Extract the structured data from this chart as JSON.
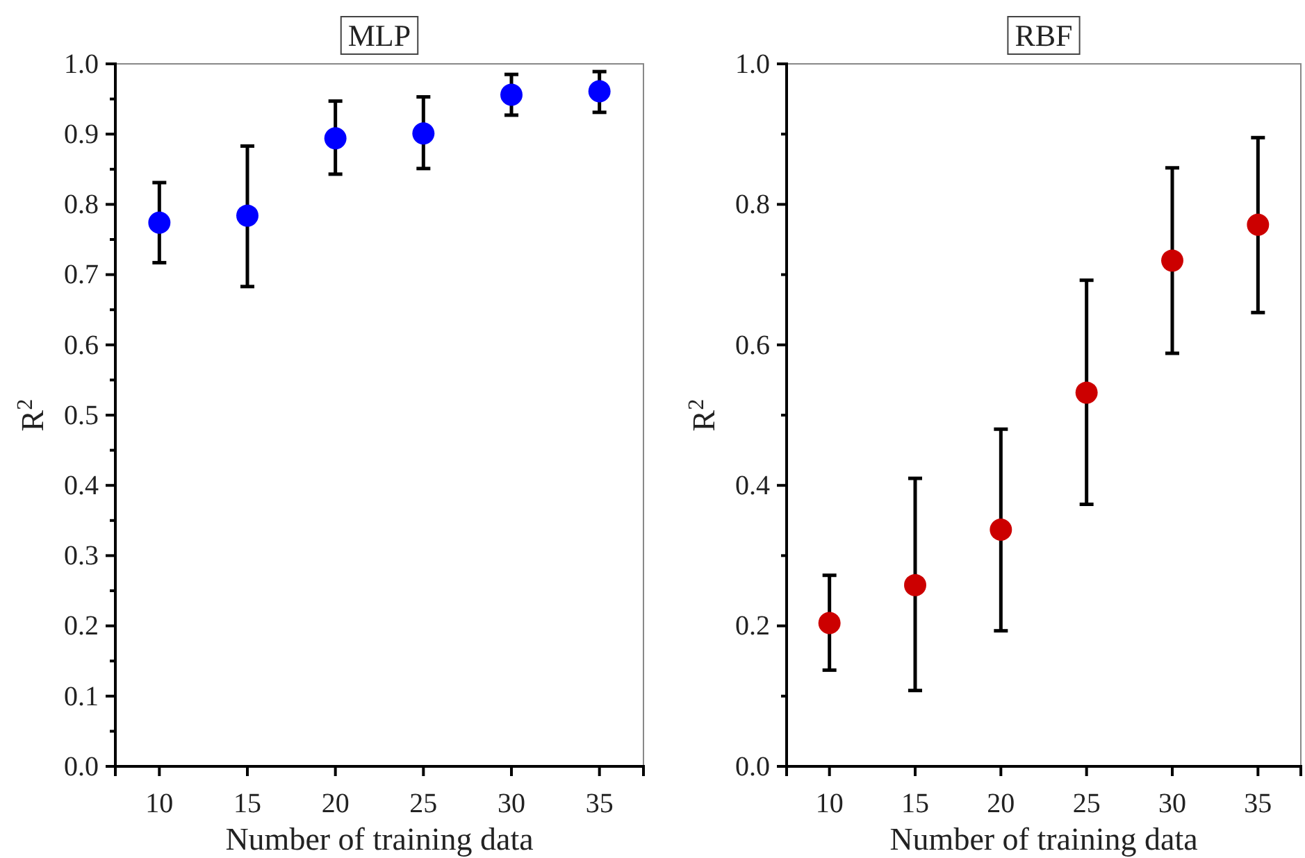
{
  "chart_data": [
    {
      "type": "scatter",
      "title": "MLP",
      "xlabel": "Number of training data",
      "ylabel": "R$^{2}$",
      "x": [
        10,
        15,
        20,
        25,
        30,
        35
      ],
      "xlim": [
        7.5,
        37.5
      ],
      "xticks": [
        10,
        15,
        20,
        25,
        30,
        35
      ],
      "ylim": [
        0,
        1
      ],
      "yticks": [
        {
          "value": 0,
          "label": "0.0"
        },
        {
          "value": 0.05,
          "label": null
        },
        {
          "value": 0.1,
          "label": "0.1"
        },
        {
          "value": 0.15,
          "label": null
        },
        {
          "value": 0.2,
          "label": "0.2"
        },
        {
          "value": 0.25,
          "label": null
        },
        {
          "value": 0.3,
          "label": "0.3"
        },
        {
          "value": 0.35,
          "label": null
        },
        {
          "value": 0.4,
          "label": "0.4"
        },
        {
          "value": 0.45,
          "label": null
        },
        {
          "value": 0.5,
          "label": "0.5"
        },
        {
          "value": 0.55,
          "label": null
        },
        {
          "value": 0.6,
          "label": "0.6"
        },
        {
          "value": 0.65,
          "label": null
        },
        {
          "value": 0.7,
          "label": "0.7"
        },
        {
          "value": 0.75,
          "label": null
        },
        {
          "value": 0.8,
          "label": "0.8"
        },
        {
          "value": 0.85,
          "label": null
        },
        {
          "value": 0.9,
          "label": "0.9"
        },
        {
          "value": 0.95,
          "label": null
        },
        {
          "value": 1,
          "label": "1.0"
        }
      ],
      "marker": "circle",
      "grid": false,
      "series": [
        {
          "color": "#0000ff",
          "values": [
            0.774,
            0.784,
            0.894,
            0.901,
            0.956,
            0.961
          ],
          "errors": [
            [
              0.717,
              0.831
            ],
            [
              0.683,
              0.883
            ],
            [
              0.843,
              0.947
            ],
            [
              0.851,
              0.953
            ],
            [
              0.927,
              0.985
            ],
            [
              0.931,
              0.989
            ]
          ]
        }
      ]
    },
    {
      "type": "scatter",
      "title": "RBF",
      "xlabel": "Number of training data",
      "ylabel": "R$^{2}$",
      "x": [
        10,
        15,
        20,
        25,
        30,
        35
      ],
      "xlim": [
        7.5,
        37.5
      ],
      "xticks": [
        10,
        15,
        20,
        25,
        30,
        35
      ],
      "ylim": [
        0,
        1
      ],
      "yticks": [
        {
          "value": 0,
          "label": "0.0"
        },
        {
          "value": 0.1,
          "label": null
        },
        {
          "value": 0.2,
          "label": "0.2"
        },
        {
          "value": 0.3,
          "label": null
        },
        {
          "value": 0.4,
          "label": "0.4"
        },
        {
          "value": 0.5,
          "label": null
        },
        {
          "value": 0.6,
          "label": "0.6"
        },
        {
          "value": 0.7,
          "label": null
        },
        {
          "value": 0.8,
          "label": "0.8"
        },
        {
          "value": 0.9,
          "label": null
        },
        {
          "value": 1,
          "label": "1.0"
        }
      ],
      "marker": "circle",
      "grid": false,
      "series": [
        {
          "color": "#cc0000",
          "values": [
            0.204,
            0.258,
            0.337,
            0.532,
            0.72,
            0.771
          ],
          "errors": [
            [
              0.137,
              0.272
            ],
            [
              0.108,
              0.41
            ],
            [
              0.193,
              0.48
            ],
            [
              0.373,
              0.692
            ],
            [
              0.588,
              0.852
            ],
            [
              0.646,
              0.895
            ]
          ]
        }
      ]
    }
  ]
}
